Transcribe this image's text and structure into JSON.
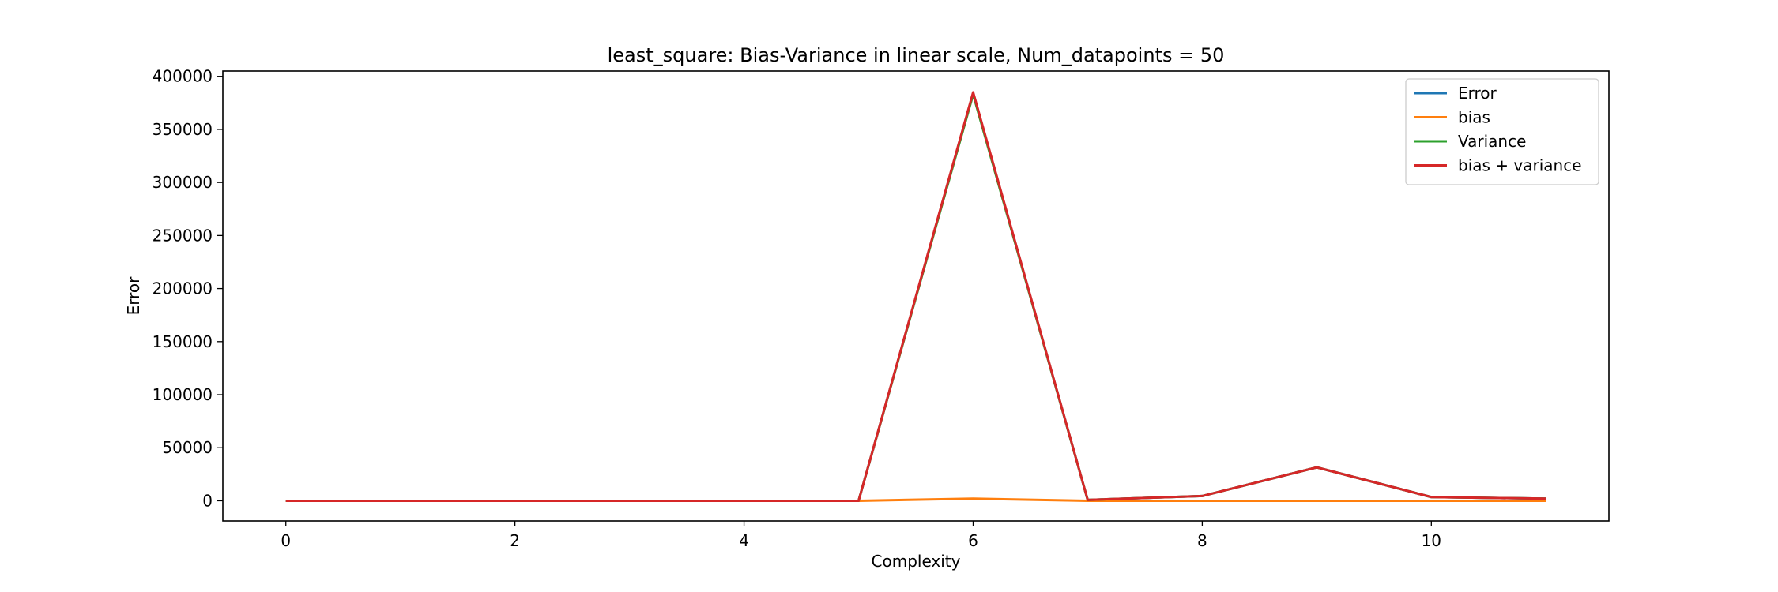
{
  "chart_data": {
    "type": "line",
    "title": "least_square: Bias-Variance in linear scale, Num_datapoints = 50",
    "xlabel": "Complexity",
    "ylabel": "Error",
    "x": [
      0,
      1,
      2,
      3,
      4,
      5,
      6,
      7,
      8,
      9,
      10,
      11
    ],
    "xlim": [
      -0.55,
      11.55
    ],
    "ylim": [
      -19000,
      405000
    ],
    "xticks": [
      0,
      2,
      4,
      6,
      8,
      10
    ],
    "yticks": [
      0,
      50000,
      100000,
      150000,
      200000,
      250000,
      300000,
      350000,
      400000
    ],
    "grid": false,
    "legend_position": "top-right",
    "series": [
      {
        "name": "Error",
        "color": "#1f77b4",
        "values": [
          0,
          0,
          0,
          0,
          0,
          0,
          384000,
          800,
          4500,
          31500,
          3500,
          2000
        ]
      },
      {
        "name": "bias",
        "color": "#ff7f0e",
        "values": [
          0,
          0,
          0,
          0,
          0,
          0,
          2000,
          0,
          0,
          0,
          0,
          0
        ]
      },
      {
        "name": "Variance",
        "color": "#2ca02c",
        "values": [
          0,
          0,
          0,
          0,
          0,
          0,
          383000,
          800,
          4500,
          31500,
          3500,
          2000
        ]
      },
      {
        "name": "bias + variance",
        "color": "#d62728",
        "values": [
          0,
          0,
          0,
          0,
          0,
          0,
          385000,
          800,
          4500,
          31500,
          3500,
          2000
        ]
      }
    ]
  }
}
